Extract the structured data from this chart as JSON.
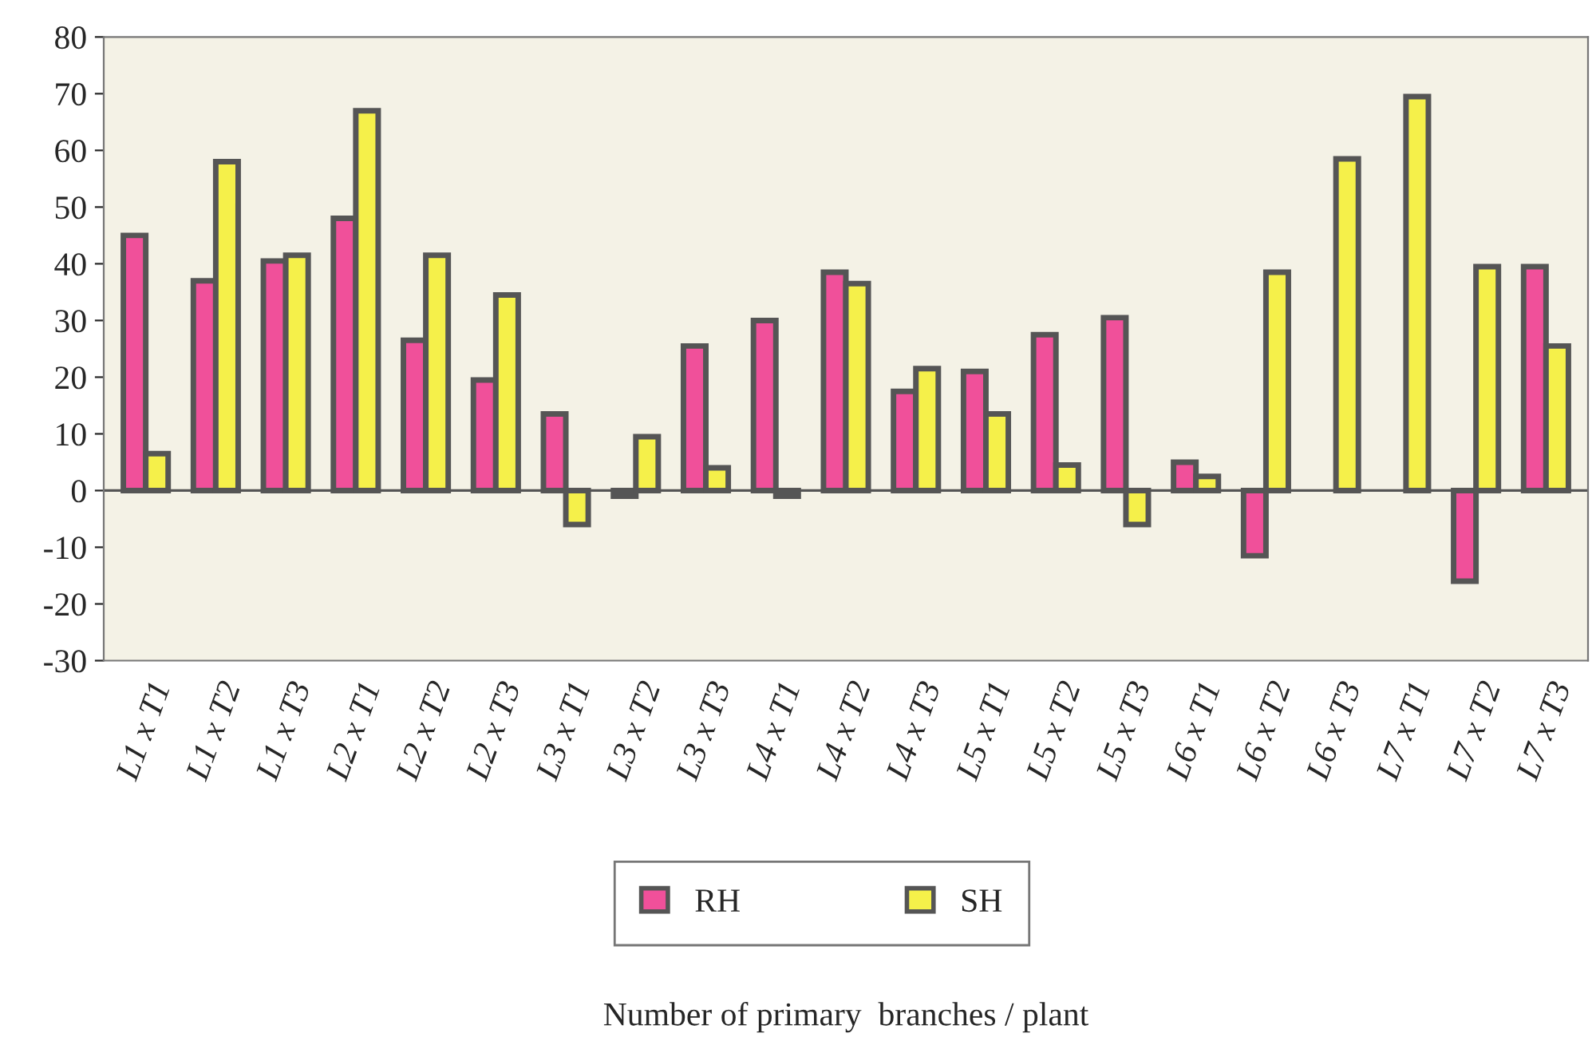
{
  "chart_data": {
    "type": "bar",
    "annotations": [
      "Number of primary  branches / plant"
    ],
    "ref_lines": [
      {
        "axis": "y",
        "value": 0,
        "color": "#555555"
      }
    ],
    "categories": [
      "L1 x T1",
      "L1 x T2",
      "L1 x T3",
      "L2 x T1",
      "L2 x T2",
      "L2 x T3",
      "L3 x T1",
      "L3 x T2",
      "L3 x T3",
      "L4 x T1",
      "L4 x T2",
      "L4 x T3",
      "L5 x T1",
      "L5 x T2",
      "L5 x T3",
      "L6 x T1",
      "L6 x T2",
      "L6 x T3",
      "L7 x T1",
      "L7 x T2",
      "L7 x T3"
    ],
    "series": [
      {
        "name": "RH",
        "color": "#f0509a",
        "values": [
          45,
          37,
          40.5,
          48,
          26.5,
          19.5,
          13.5,
          -1,
          25.5,
          30,
          38.5,
          17.5,
          21,
          27.5,
          30.5,
          5,
          -11.5,
          null,
          null,
          -16,
          39.5
        ]
      },
      {
        "name": "SH",
        "color": "#f5f04a",
        "values": [
          6.5,
          58,
          41.5,
          67,
          41.5,
          34.5,
          -6,
          9.5,
          4,
          -1,
          36.5,
          21.5,
          13.5,
          4.5,
          -6,
          2.5,
          38.5,
          58.5,
          69.5,
          39.5,
          25.5
        ]
      }
    ],
    "ylim": [
      -30,
      80
    ],
    "yticks": [
      -30,
      -20,
      -10,
      0,
      10,
      20,
      30,
      40,
      50,
      60,
      70,
      80
    ],
    "legend": "bottom"
  }
}
